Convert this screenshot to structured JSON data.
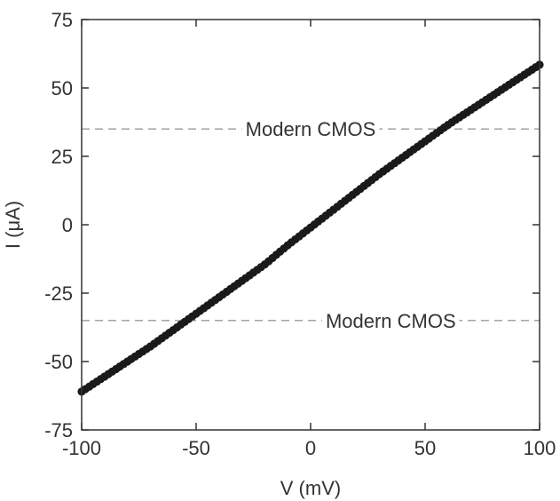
{
  "chart_data": {
    "type": "scatter",
    "title": "",
    "xlabel": "V (mV)",
    "ylabel": "I (μA)",
    "xlim": [
      -100,
      100
    ],
    "ylim": [
      -75,
      75
    ],
    "xticks": [
      -100,
      -50,
      0,
      50,
      100
    ],
    "yticks": [
      -75,
      -50,
      -25,
      0,
      25,
      50,
      75
    ],
    "grid": false,
    "legend": "none",
    "marker_color": "#1a1a1a",
    "reference_line_color": "#9a9a9a",
    "series": [
      {
        "x": [
          -100,
          -90,
          -80,
          -70,
          -60,
          -50,
          -40,
          -30,
          -20,
          -10,
          0,
          10,
          20,
          30,
          40,
          50,
          60,
          70,
          80,
          90,
          100
        ],
        "y": [
          -61,
          -55.5,
          -50,
          -44.5,
          -38.5,
          -32.5,
          -26.5,
          -20.5,
          -14.5,
          -7.5,
          -1,
          5.5,
          12,
          18.5,
          24.5,
          30.5,
          36.5,
          42,
          47.5,
          53,
          58.5
        ]
      }
    ],
    "reference_lines": [
      {
        "y": 35,
        "label": "Modern CMOS",
        "label_x": 0
      },
      {
        "y": -35,
        "label": "Modern CMOS",
        "label_x": 35
      }
    ]
  }
}
